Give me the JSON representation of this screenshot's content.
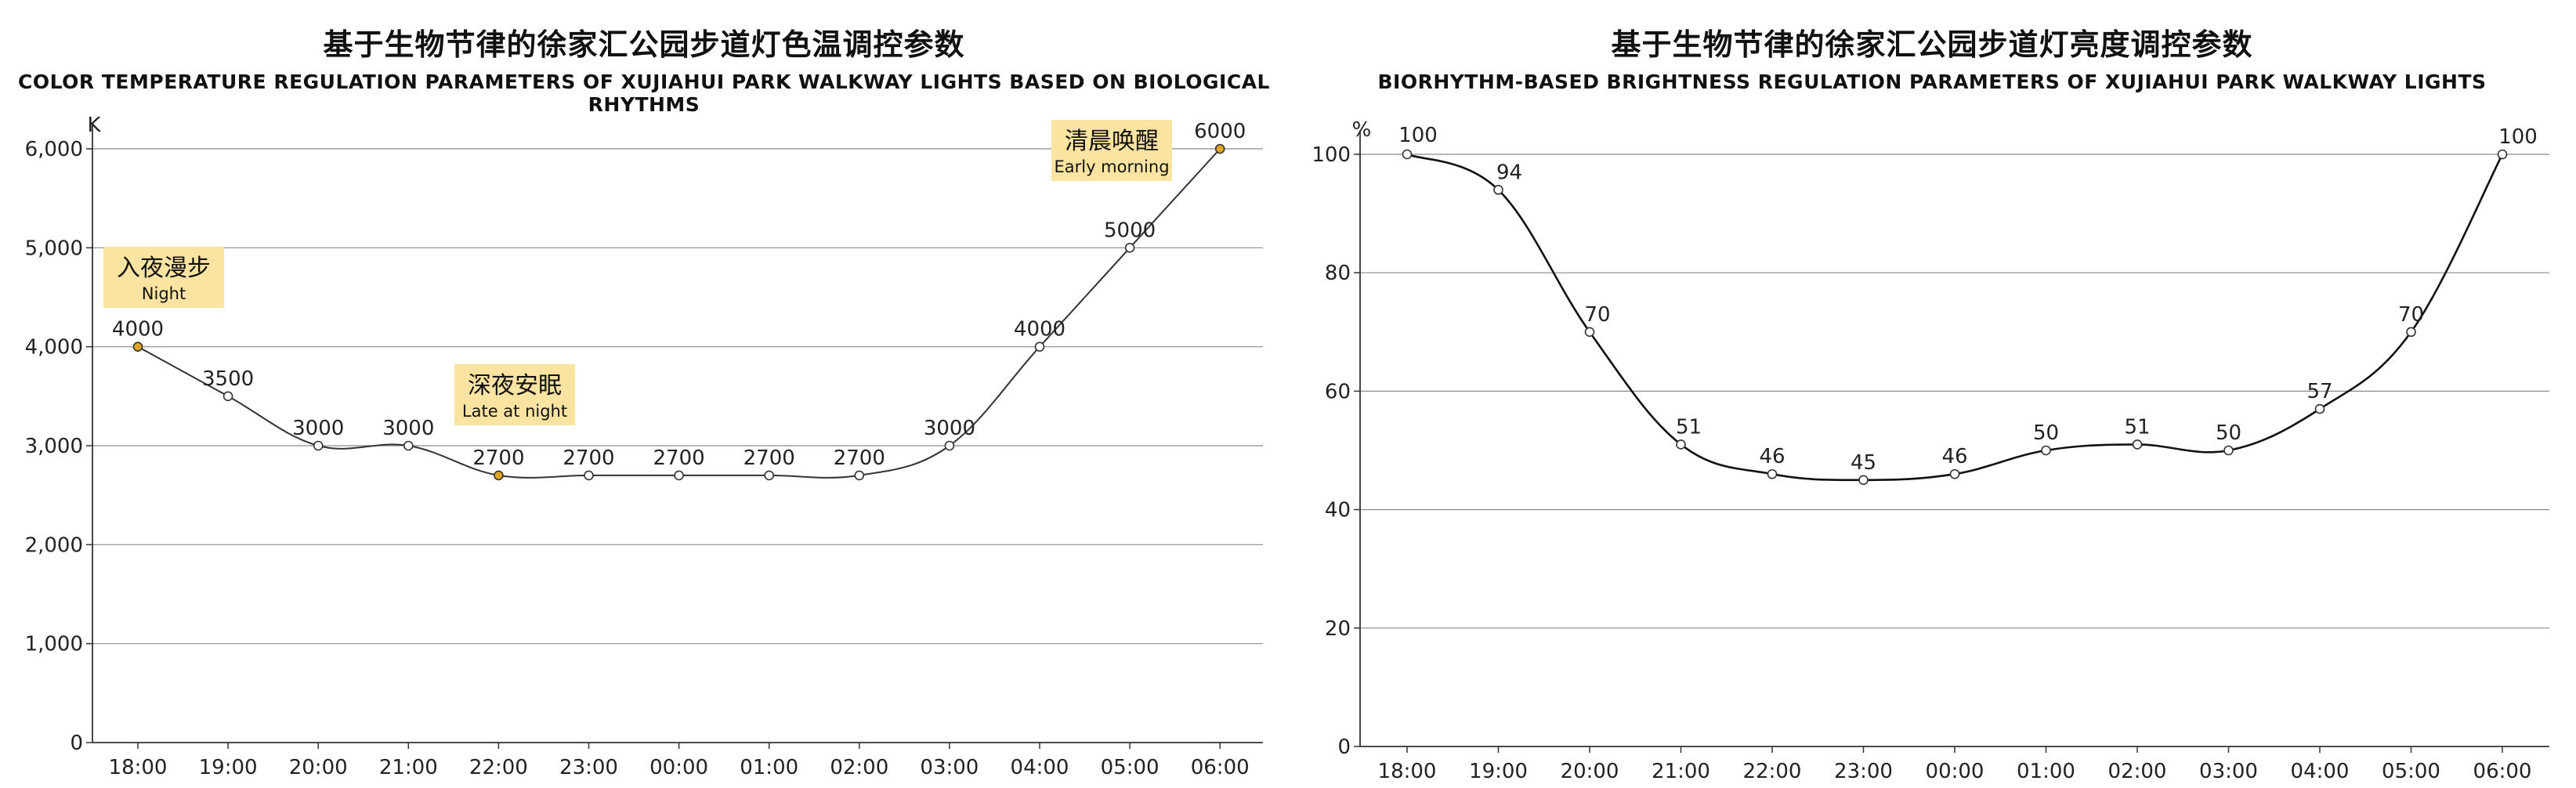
{
  "chart_data": [
    {
      "type": "line",
      "title": "基于生物节律的徐家汇公园步道灯色温调控参数",
      "subtitle": "COLOR TEMPERATURE REGULATION PARAMETERS OF XUJIAHUI PARK WALKWAY LIGHTS BASED ON BIOLOGICAL RHYTHMS",
      "ylabel": "K",
      "xlabel": "",
      "categories": [
        "18:00",
        "19:00",
        "20:00",
        "21:00",
        "22:00",
        "23:00",
        "00:00",
        "01:00",
        "02:00",
        "03:00",
        "04:00",
        "05:00",
        "06:00"
      ],
      "values": [
        4000,
        3500,
        3000,
        3000,
        2700,
        2700,
        2700,
        2700,
        2700,
        3000,
        4000,
        5000,
        6000
      ],
      "data_labels": [
        "4000",
        "3500",
        "3000",
        "3000",
        "2700",
        "2700",
        "2700",
        "2700",
        "2700",
        "3000",
        "4000",
        "5000",
        "6000"
      ],
      "ylim": [
        0,
        6000
      ],
      "yticks": [
        0,
        1000,
        2000,
        3000,
        4000,
        5000,
        6000
      ],
      "ytick_labels": [
        "0",
        "1,000",
        "2,000",
        "3,000",
        "4,000",
        "5,000",
        "6,000"
      ],
      "grid": true,
      "line_color": "#333333",
      "highlight_color": "#e0a526",
      "annotation_color": "#fbe3a1",
      "annotations": [
        {
          "index": 0,
          "cn": "入夜漫步",
          "en": "Night"
        },
        {
          "index": 4,
          "cn": "深夜安眠",
          "en": "Late at night"
        },
        {
          "index": 12,
          "cn": "清晨唤醒",
          "en": "Early morning"
        }
      ]
    },
    {
      "type": "line",
      "title": "基于生物节律的徐家汇公园步道灯亮度调控参数",
      "subtitle": "BIORHYTHM-BASED BRIGHTNESS REGULATION PARAMETERS OF XUJIAHUI PARK WALKWAY LIGHTS",
      "ylabel": "%",
      "xlabel": "",
      "categories": [
        "18:00",
        "19:00",
        "20:00",
        "21:00",
        "22:00",
        "23:00",
        "00:00",
        "01:00",
        "02:00",
        "03:00",
        "04:00",
        "05:00",
        "06:00"
      ],
      "values": [
        100,
        94,
        70,
        51,
        46,
        45,
        46,
        50,
        51,
        50,
        57,
        70,
        100
      ],
      "data_labels": [
        "100",
        "94",
        "70",
        "51",
        "46",
        "45",
        "46",
        "50",
        "51",
        "50",
        "57",
        "70",
        "100"
      ],
      "ylim": [
        0,
        100
      ],
      "yticks": [
        0,
        20,
        40,
        60,
        80,
        100
      ],
      "ytick_labels": [
        "0",
        "20",
        "40",
        "60",
        "80",
        "100"
      ],
      "grid": true,
      "line_color": "#111111"
    }
  ]
}
